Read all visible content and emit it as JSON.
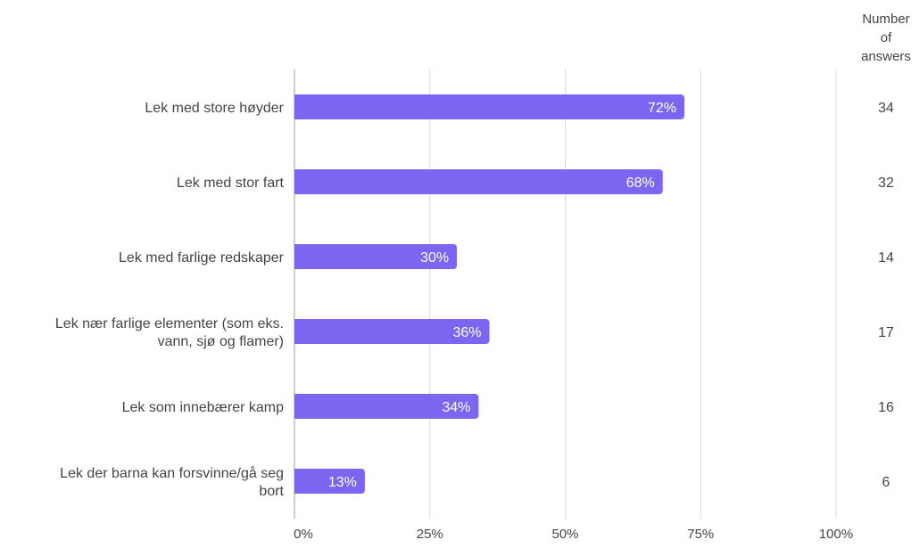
{
  "chart_data": {
    "type": "bar",
    "orientation": "horizontal",
    "categories": [
      "Lek med store høyder",
      "Lek med stor fart",
      "Lek med farlige redskaper",
      "Lek nær farlige elementer (som eks. vann, sjø og flamer)",
      "Lek som innebærer kamp",
      "Lek der barna kan forsvinne/gå seg bort"
    ],
    "values": [
      72,
      68,
      30,
      36,
      34,
      13
    ],
    "value_labels": [
      "72%",
      "68%",
      "30%",
      "36%",
      "34%",
      "13%"
    ],
    "counts": [
      34,
      32,
      14,
      17,
      16,
      6
    ],
    "count_header": "Number of answers",
    "xlim": [
      0,
      100
    ],
    "xticks": [
      0,
      25,
      50,
      75,
      100
    ],
    "xtick_labels": [
      "0%",
      "25%",
      "50%",
      "75%",
      "100%"
    ],
    "grid": true,
    "colors": {
      "bar": "#7b66f2",
      "grid": "#d9d9d9",
      "axis": "#bdbdbd",
      "text": "#444444",
      "bar_label": "#ffffff"
    }
  }
}
